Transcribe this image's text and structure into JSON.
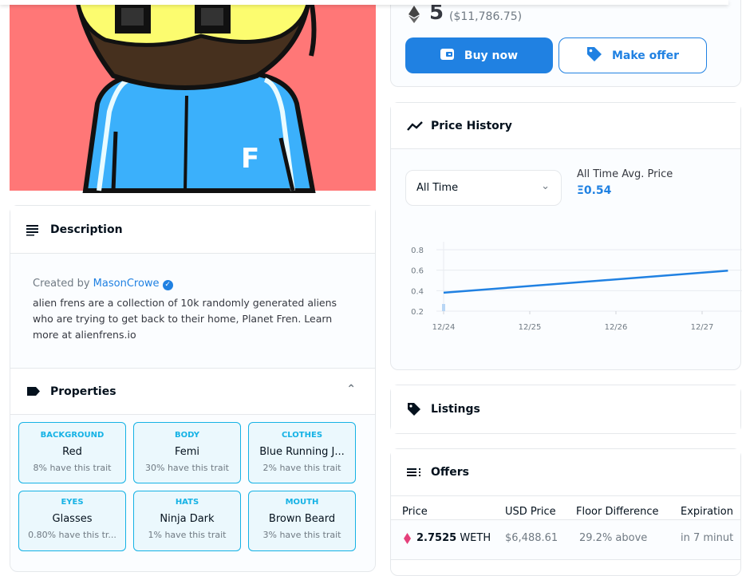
{
  "price": {
    "amount": "5",
    "usd": "($11,786.75)",
    "buy_label": "Buy now",
    "offer_label": "Make offer"
  },
  "description": {
    "title": "Description",
    "created_by": "Created by",
    "creator": "MasonCrowe",
    "text": "alien frens are a collection of 10k randomly generated aliens who are trying to get back to their home, Planet Fren. Learn more at alienfrens.io"
  },
  "properties": {
    "title": "Properties",
    "items": [
      {
        "type": "BACKGROUND",
        "value": "Red",
        "rarity": "8% have this trait"
      },
      {
        "type": "BODY",
        "value": "Femi",
        "rarity": "30% have this trait"
      },
      {
        "type": "CLOTHES",
        "value": "Blue Running J...",
        "rarity": "2% have this trait"
      },
      {
        "type": "EYES",
        "value": "Glasses",
        "rarity": "0.80% have this tr..."
      },
      {
        "type": "HATS",
        "value": "Ninja Dark",
        "rarity": "1% have this trait"
      },
      {
        "type": "MOUTH",
        "value": "Brown Beard",
        "rarity": "3% have this trait"
      }
    ]
  },
  "price_history": {
    "title": "Price History",
    "filter": "All Time",
    "avg_label": "All Time Avg. Price",
    "avg_value": "Ξ0.54"
  },
  "chart_data": {
    "type": "line",
    "x": [
      "12/24",
      "12/25",
      "12/26",
      "12/27"
    ],
    "yticks": [
      "0.8",
      "0.6",
      "0.4",
      "0.2"
    ],
    "ylim": [
      0.2,
      0.8
    ],
    "series": [
      {
        "name": "Avg price",
        "points": [
          [
            0,
            0.38
          ],
          [
            3.3,
            0.595
          ]
        ]
      }
    ],
    "volume": [
      {
        "x": 0,
        "value": 0.27
      }
    ],
    "grid": true
  },
  "listings": {
    "title": "Listings"
  },
  "offers": {
    "title": "Offers",
    "columns": [
      "Price",
      "USD Price",
      "Floor Difference",
      "Expiration"
    ],
    "rows": [
      {
        "price": "2.7525",
        "currency": "WETH",
        "usd": "$6,488.61",
        "floor": "29.2% above",
        "expiration": "in 7 minut"
      }
    ]
  },
  "colors": {
    "accent": "#2081e2",
    "trait": "#15b2e5"
  }
}
